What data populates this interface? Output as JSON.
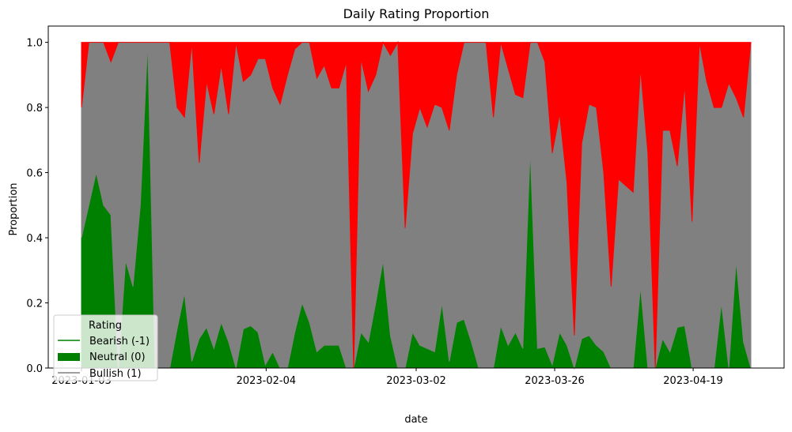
{
  "chart_data": {
    "type": "area",
    "stacked": true,
    "normalized": true,
    "title": "Daily Rating Proportion",
    "xlabel": "date",
    "ylabel": "Proportion",
    "ylim": [
      0,
      1.05
    ],
    "yticks": [
      "0.0",
      "0.2",
      "0.4",
      "0.6",
      "0.8",
      "1.0"
    ],
    "xtick_labels": [
      "2023-01-03",
      "2023-02-04",
      "2023-03-02",
      "2023-03-26",
      "2023-04-19"
    ],
    "x_range_days": [
      0,
      116
    ],
    "x_ticks_day": [
      0,
      32,
      58,
      82,
      106
    ],
    "legend": {
      "title": "Rating",
      "position": "lower left",
      "entries": [
        {
          "label": "Bearish (-1)",
          "color": "#008000",
          "marker": "line"
        },
        {
          "label": "Neutral (0)",
          "color": "#008000",
          "marker": "patch"
        },
        {
          "label": "Bullish (1)",
          "color": "#808080",
          "marker": "line"
        }
      ]
    },
    "colors": {
      "bearish": "#008000",
      "neutral": "#808080",
      "bullish": "#ff0000"
    },
    "series": [
      {
        "name": "Bearish (-1)",
        "values": [
          0.4,
          0.5,
          0.6,
          0.5,
          0.47,
          0.0,
          0.33,
          0.25,
          0.5,
          1.0,
          0.0,
          0.0,
          0.0,
          0.12,
          0.23,
          0.02,
          0.09,
          0.125,
          0.06,
          0.14,
          0.08,
          0.0,
          0.12,
          0.13,
          0.11,
          0.01,
          0.05,
          0.0,
          0.0,
          0.11,
          0.2,
          0.14,
          0.05,
          0.07,
          0.07,
          0.07,
          0.0,
          0.0,
          0.11,
          0.08,
          0.2,
          0.33,
          0.1,
          0.0,
          0.0,
          0.11,
          0.07,
          0.06,
          0.05,
          0.2,
          0.02,
          0.14,
          0.15,
          0.08,
          0.0,
          0.0,
          0.0,
          0.13,
          0.07,
          0.11,
          0.06,
          0.67,
          0.06,
          0.065,
          0.01,
          0.11,
          0.07,
          0.0,
          0.09,
          0.1,
          0.07,
          0.05,
          0.0,
          0.0,
          0.0,
          0.0,
          0.25,
          0.0,
          0.0,
          0.09,
          0.05,
          0.125,
          0.13,
          0.0,
          0.0,
          0.0,
          0.0,
          0.2,
          0.0,
          0.33,
          0.08,
          0.0
        ]
      },
      {
        "name": "Neutral (0)",
        "values": [
          0.4,
          0.5,
          0.4,
          0.5,
          0.47,
          1.0,
          0.67,
          0.75,
          0.5,
          0.0,
          1.0,
          1.0,
          1.0,
          0.68,
          0.54,
          0.98,
          0.54,
          0.755,
          0.72,
          0.79,
          0.7,
          1.0,
          0.76,
          0.77,
          0.84,
          0.94,
          0.81,
          0.81,
          0.9,
          0.87,
          0.8,
          0.86,
          0.84,
          0.86,
          0.79,
          0.79,
          0.94,
          0.0,
          0.84,
          0.77,
          0.7,
          0.67,
          0.86,
          1.0,
          0.43,
          0.61,
          0.73,
          0.68,
          0.76,
          0.6,
          0.71,
          0.76,
          0.85,
          0.92,
          1.0,
          1.0,
          0.77,
          0.87,
          0.85,
          0.73,
          0.77,
          0.33,
          0.94,
          0.875,
          0.65,
          0.67,
          0.5,
          0.1,
          0.6,
          0.71,
          0.73,
          0.55,
          0.25,
          0.58,
          0.56,
          0.54,
          0.67,
          0.66,
          0.0,
          0.64,
          0.68,
          0.495,
          0.74,
          0.45,
          1.0,
          0.88,
          0.8,
          0.6,
          0.875,
          0.5,
          0.69,
          1.0
        ]
      },
      {
        "name": "Bullish (1)",
        "values": [
          0.2,
          0.0,
          0.0,
          0.0,
          0.06,
          0.0,
          0.0,
          0.0,
          0.0,
          0.0,
          0.0,
          0.0,
          0.0,
          0.2,
          0.23,
          0.0,
          0.37,
          0.12,
          0.22,
          0.07,
          0.22,
          0.0,
          0.12,
          0.1,
          0.05,
          0.05,
          0.14,
          0.19,
          0.1,
          0.02,
          0.0,
          0.0,
          0.11,
          0.07,
          0.14,
          0.14,
          0.06,
          1.0,
          0.05,
          0.15,
          0.1,
          0.0,
          0.04,
          0.0,
          0.57,
          0.28,
          0.2,
          0.26,
          0.19,
          0.2,
          0.27,
          0.1,
          0.0,
          0.0,
          0.0,
          0.0,
          0.23,
          0.0,
          0.08,
          0.16,
          0.17,
          0.0,
          0.0,
          0.06,
          0.34,
          0.22,
          0.43,
          0.9,
          0.31,
          0.19,
          0.2,
          0.4,
          0.75,
          0.42,
          0.44,
          0.46,
          0.08,
          0.34,
          1.0,
          0.27,
          0.27,
          0.38,
          0.13,
          0.55,
          0.0,
          0.12,
          0.2,
          0.2,
          0.125,
          0.17,
          0.23,
          0.0
        ]
      }
    ]
  }
}
